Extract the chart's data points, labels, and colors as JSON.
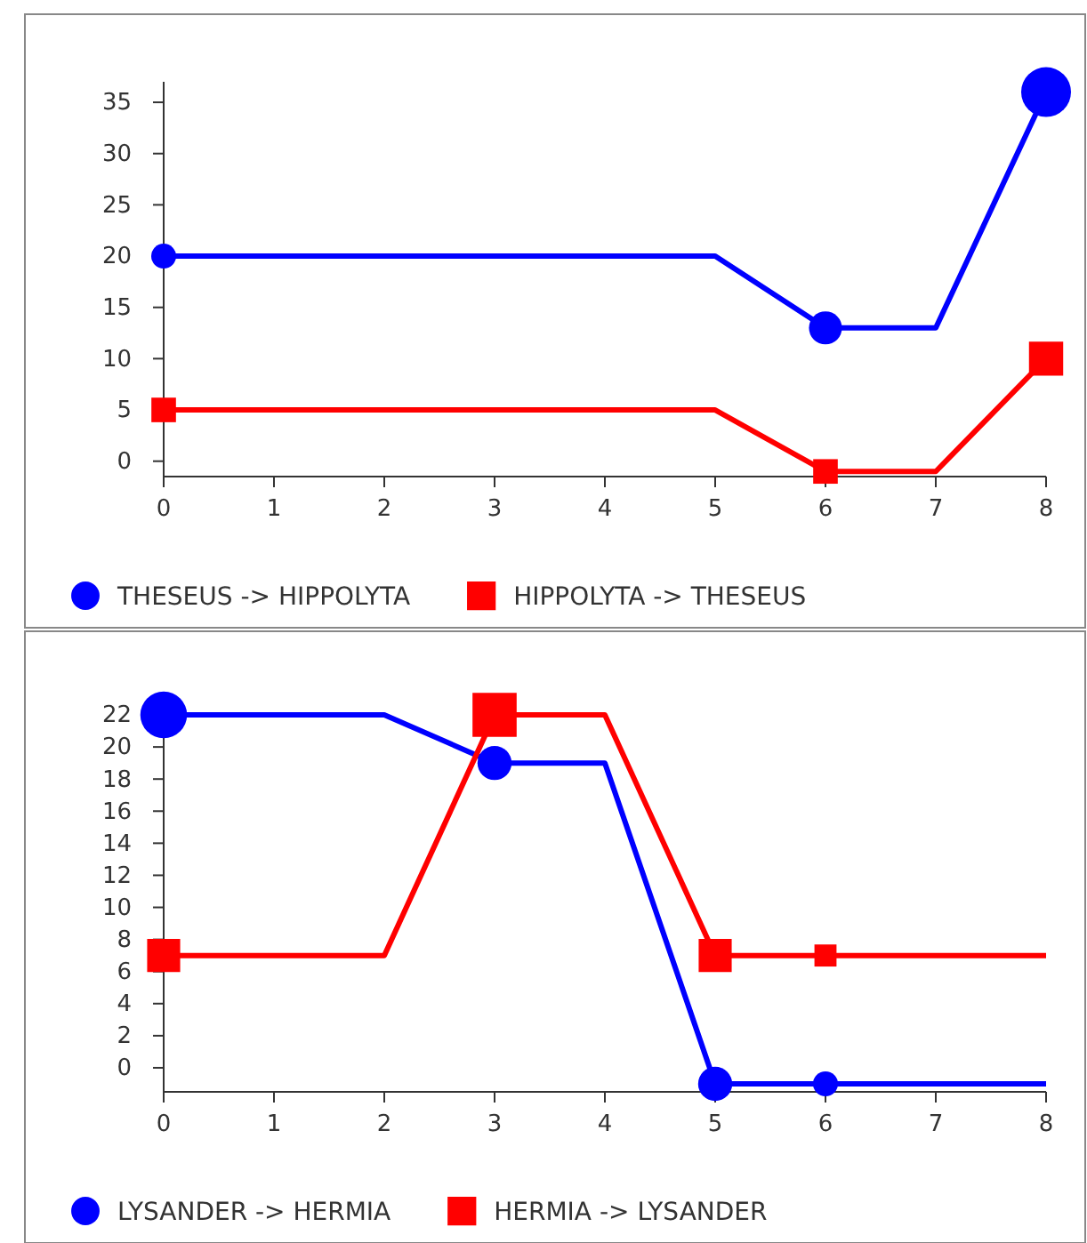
{
  "chart_data": [
    {
      "type": "line",
      "x": [
        0,
        1,
        2,
        3,
        4,
        5,
        6,
        7,
        8
      ],
      "xlim": [
        0,
        8
      ],
      "xticks": [
        0,
        1,
        2,
        3,
        4,
        5,
        6,
        7,
        8
      ],
      "ylim": [
        -1.5,
        37
      ],
      "yticks": [
        0,
        5,
        10,
        15,
        20,
        25,
        30,
        35
      ],
      "legend": "bottom",
      "grid": false,
      "series": [
        {
          "type": "line",
          "color": "#0000ff",
          "marker": "none",
          "values": [
            20,
            20,
            20,
            20,
            20,
            20,
            13,
            13,
            36
          ]
        },
        {
          "type": "line",
          "color": "#ff0000",
          "marker": "none",
          "values": [
            5,
            5,
            5,
            5,
            5,
            5,
            -1,
            -1,
            10
          ]
        },
        {
          "type": "bubble",
          "name": "THESEUS -> HIPPOLYTA",
          "color": "#0000ff",
          "marker": "circle",
          "x": [
            0,
            6,
            8
          ],
          "values": [
            20,
            13,
            36
          ],
          "sizes": [
            0.25,
            0.44,
            1
          ]
        },
        {
          "type": "bubble",
          "name": "HIPPOLYTA -> THESEUS",
          "color": "#ff0000",
          "marker": "square",
          "x": [
            0,
            6,
            8
          ],
          "values": [
            5,
            -1,
            10
          ],
          "sizes": [
            0.31,
            0.31,
            0.6
          ]
        }
      ]
    },
    {
      "type": "line",
      "x": [
        0,
        1,
        2,
        3,
        4,
        5,
        6,
        7,
        8
      ],
      "xlim": [
        0,
        8
      ],
      "xticks": [
        0,
        1,
        2,
        3,
        4,
        5,
        6,
        7,
        8
      ],
      "ylim": [
        -1.5,
        23
      ],
      "yticks": [
        0,
        2,
        4,
        6,
        8,
        10,
        12,
        14,
        16,
        18,
        20,
        22
      ],
      "legend": "bottom",
      "grid": false,
      "series": [
        {
          "type": "line",
          "color": "#0000ff",
          "marker": "none",
          "values": [
            22,
            22,
            22,
            19,
            19,
            -1,
            -1,
            -1,
            -1
          ]
        },
        {
          "type": "line",
          "color": "#ff0000",
          "marker": "none",
          "values": [
            7,
            7,
            7,
            22,
            22,
            7,
            7,
            7,
            7
          ]
        },
        {
          "type": "bubble",
          "name": "LYSANDER -> HERMIA",
          "color": "#0000ff",
          "marker": "circle",
          "x": [
            0,
            3,
            5,
            6
          ],
          "values": [
            22,
            19,
            -1,
            -1
          ],
          "sizes": [
            0.88,
            0.47,
            0.47,
            0.25
          ]
        },
        {
          "type": "bubble",
          "name": "HERMIA -> LYSANDER",
          "color": "#ff0000",
          "marker": "square",
          "x": [
            0,
            3,
            5,
            6
          ],
          "values": [
            7,
            22,
            7,
            7
          ],
          "sizes": [
            0.56,
            1,
            0.56,
            0.25
          ]
        }
      ]
    }
  ]
}
